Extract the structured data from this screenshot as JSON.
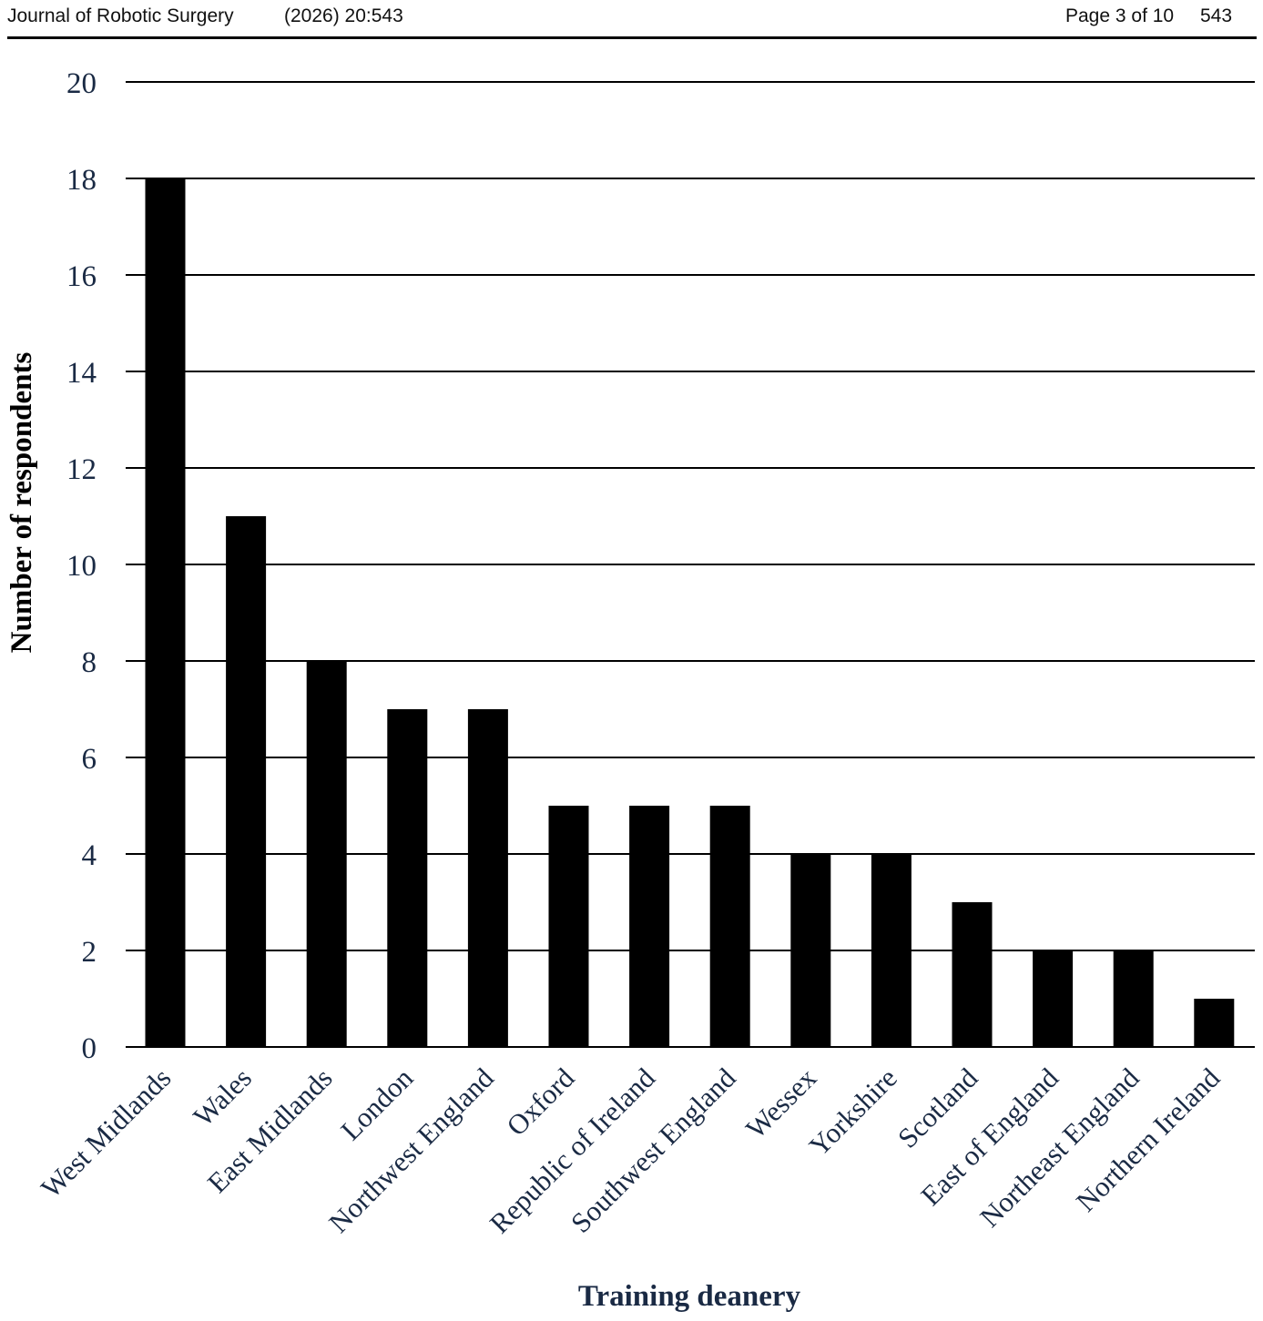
{
  "header": {
    "journal": "Journal of Robotic Surgery",
    "citation": "(2026) 20:543",
    "page": "Page 3 of 10",
    "article_no": "543"
  },
  "chart_data": {
    "type": "bar",
    "categories": [
      "West Midlands",
      "Wales",
      "East Midlands",
      "London",
      "Northwest England",
      "Oxford",
      "Republic of Ireland",
      "Southwest England",
      "Wessex",
      "Yorkshire",
      "Scotland",
      "East of England",
      "Northeast England",
      "Northern Ireland"
    ],
    "values": [
      18,
      11,
      8,
      7,
      7,
      5,
      5,
      5,
      4,
      4,
      3,
      2,
      2,
      1
    ],
    "xlabel": "Training deanery",
    "ylabel": "Number of respondents",
    "ylim": [
      0,
      20
    ],
    "yticks": [
      0,
      2,
      4,
      6,
      8,
      10,
      12,
      14,
      16,
      18,
      20
    ],
    "grid": true,
    "bar_color": "#000000",
    "label_color": "#1a2a44"
  }
}
